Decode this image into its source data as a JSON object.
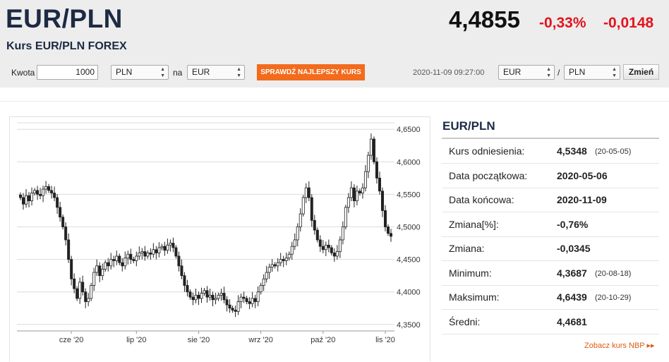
{
  "header": {
    "pair": "EUR/PLN",
    "subtitle": "Kurs EUR/PLN FOREX",
    "price": "4,4855",
    "change_pct": "-0,33%",
    "change_abs": "-0,0148"
  },
  "converter": {
    "amount_label": "Kwota",
    "amount_value": "1000",
    "from_currency": "PLN",
    "on_label": "na",
    "to_currency": "EUR",
    "best_rate_button": "SPRAWDŹ NAJLEPSZY KURS",
    "timestamp": "2020-11-09 09:27:00",
    "pair_base": "EUR",
    "pair_slash": "/",
    "pair_quote": "PLN",
    "change_button": "Zmień"
  },
  "panel": {
    "title": "EUR/PLN",
    "rows": [
      {
        "label": "Kurs odniesienia:",
        "value": "4,5348",
        "date": "(20-05-05)"
      },
      {
        "label": "Data początkowa:",
        "value": "2020-05-06",
        "date": ""
      },
      {
        "label": "Data końcowa:",
        "value": "2020-11-09",
        "date": ""
      },
      {
        "label": "Zmiana[%]:",
        "value": "-0,76%",
        "date": ""
      },
      {
        "label": "Zmiana:",
        "value": "-0,0345",
        "date": ""
      },
      {
        "label": "Minimum:",
        "value": "4,3687",
        "date": "(20-08-18)"
      },
      {
        "label": "Maksimum:",
        "value": "4,6439",
        "date": "(20-10-29)"
      },
      {
        "label": "Średni:",
        "value": "4,4681",
        "date": ""
      }
    ],
    "nbp_link": "Zobacz kurs NBP ▸▸"
  },
  "colors": {
    "accent": "#f36b1c",
    "negative": "#e3141d",
    "title": "#1d2a44"
  },
  "chart_data": {
    "type": "candlestick",
    "ylim": [
      4.34,
      4.66
    ],
    "yticks": [
      4.35,
      4.4,
      4.45,
      4.5,
      4.55,
      4.6,
      4.65
    ],
    "ytick_labels": [
      "4,3500",
      "4,4000",
      "4,4500",
      "4,5000",
      "4,5500",
      "4,6000",
      "4,6500"
    ],
    "xtick_labels": [
      "cze '20",
      "lip '20",
      "sie '20",
      "wrz '20",
      "paź '20",
      "lis '20"
    ],
    "xtick_index": [
      18,
      41,
      63,
      85,
      107,
      129
    ],
    "points": 132,
    "close": [
      4.545,
      4.535,
      4.548,
      4.54,
      4.552,
      4.556,
      4.55,
      4.548,
      4.558,
      4.562,
      4.556,
      4.552,
      4.545,
      4.53,
      4.515,
      4.5,
      4.48,
      4.45,
      4.42,
      4.405,
      4.39,
      4.415,
      4.4,
      4.385,
      4.39,
      4.41,
      4.43,
      4.44,
      4.425,
      4.435,
      4.445,
      4.44,
      4.45,
      4.448,
      4.455,
      4.445,
      4.44,
      4.452,
      4.458,
      4.45,
      4.448,
      4.455,
      4.46,
      4.462,
      4.455,
      4.46,
      4.458,
      4.465,
      4.46,
      4.468,
      4.47,
      4.464,
      4.472,
      4.475,
      4.468,
      4.455,
      4.44,
      4.425,
      4.41,
      4.4,
      4.392,
      4.388,
      4.395,
      4.39,
      4.398,
      4.402,
      4.392,
      4.395,
      4.388,
      4.39,
      4.395,
      4.398,
      4.388,
      4.38,
      4.375,
      4.372,
      4.37,
      4.385,
      4.392,
      4.39,
      4.385,
      4.382,
      4.39,
      4.385,
      4.4,
      4.41,
      4.42,
      4.43,
      4.438,
      4.442,
      4.44,
      4.445,
      4.45,
      4.448,
      4.452,
      4.458,
      4.47,
      4.48,
      4.5,
      4.52,
      4.545,
      4.56,
      4.545,
      4.51,
      4.495,
      4.48,
      4.47,
      4.465,
      4.472,
      4.468,
      4.46,
      4.455,
      4.462,
      4.48,
      4.5,
      4.53,
      4.545,
      4.56,
      4.54,
      4.555,
      4.552,
      4.56,
      4.585,
      4.61,
      4.635,
      4.6,
      4.575,
      4.555,
      4.525,
      4.5,
      4.49,
      4.4855
    ],
    "title": "",
    "xlabel": "",
    "ylabel": ""
  }
}
